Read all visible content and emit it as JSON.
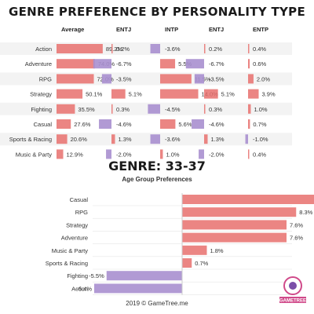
{
  "title_top": "GENRE PREFERENCE BY PERSONALITY TYPE",
  "title_bottom": "GENRE: 33-37",
  "subtitle_bottom": "Age Group Preferences",
  "footer": "2019 © GameTree.me",
  "logo_text": "GAMETREE",
  "colors": {
    "positive": "#e8706d",
    "negative": "#a88fcf",
    "row_bg": "#f3f3f3"
  },
  "chart_data": [
    {
      "type": "table",
      "title": "GENRE PREFERENCE BY PERSONALITY TYPE",
      "columns": [
        "Average",
        "ENTJ",
        "INTP",
        "ENTJ",
        "ENTP"
      ],
      "rows": [
        "Action",
        "Adventure",
        "RPG",
        "Strategy",
        "Fighting",
        "Casual",
        "Sports & Racing",
        "Music & Party"
      ],
      "series": [
        {
          "name": "Average",
          "values": [
            89.2,
            74.0,
            72.0,
            50.1,
            35.5,
            27.6,
            20.6,
            12.9
          ],
          "labels": [
            "89.2%",
            "74.0%",
            "72.0%",
            "50.1%",
            "35.5%",
            "27.6%",
            "20.6%",
            "12.9%"
          ]
        },
        {
          "name": "ENTJ",
          "values": [
            0.2,
            -6.7,
            -3.5,
            5.1,
            0.3,
            -4.6,
            1.3,
            -2.0
          ],
          "labels": [
            "0.2%",
            "-6.7%",
            "-3.5%",
            "5.1%",
            "0.3%",
            "-4.6%",
            "1.3%",
            "-2.0%"
          ]
        },
        {
          "name": "INTP",
          "values": [
            -3.6,
            5.5,
            11.5,
            14.0,
            -4.5,
            5.6,
            -3.6,
            1.0
          ],
          "labels": [
            "-3.6%",
            "5.5%",
            "11.5%",
            "14.0%",
            "-4.5%",
            "5.6%",
            "-3.6%",
            "1.0%"
          ]
        },
        {
          "name": "ENTJ",
          "values": [
            0.2,
            -6.7,
            -3.5,
            5.1,
            0.3,
            -4.6,
            1.3,
            -2.0
          ],
          "labels": [
            "0.2%",
            "-6.7%",
            "-3.5%",
            "5.1%",
            "0.3%",
            "-4.6%",
            "1.3%",
            "-2.0%"
          ]
        },
        {
          "name": "ENTP",
          "values": [
            0.4,
            0.6,
            2.0,
            3.9,
            1.0,
            0.7,
            -1.0,
            0.4
          ],
          "labels": [
            "0.4%",
            "0.6%",
            "2.0%",
            "3.9%",
            "1.0%",
            "0.7%",
            "-1.0%",
            "0.4%"
          ]
        }
      ]
    },
    {
      "type": "bar",
      "orientation": "horizontal",
      "title": "GENRE: 33-37",
      "subtitle": "Age Group Preferences",
      "categories": [
        "Casual",
        "RPG",
        "Strategy",
        "Adventure",
        "Music & Party",
        "Sports & Racing",
        "Fighting",
        "Action"
      ],
      "values": [
        9.8,
        8.3,
        7.6,
        7.6,
        1.8,
        0.7,
        -5.5,
        -6.4
      ],
      "labels": [
        "9.8%",
        "8.3%",
        "7.6%",
        "7.6%",
        "1.8%",
        "0.7%",
        "-5.5%",
        "-6.4%"
      ],
      "xlim": [
        -7,
        10
      ],
      "grid": true
    }
  ]
}
